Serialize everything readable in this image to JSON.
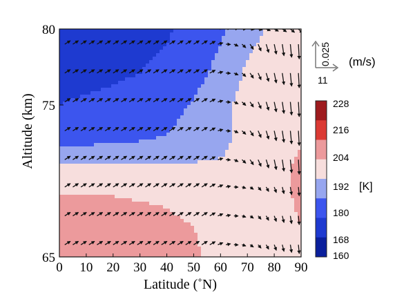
{
  "chart_data": {
    "type": "heatmap",
    "xlabel": "Latitude (˚N)",
    "ylabel": "Altitude (km)",
    "xlim": [
      0,
      90
    ],
    "ylim": [
      65,
      80
    ],
    "x_ticks": [
      "0",
      "10",
      "20",
      "30",
      "40",
      "50",
      "60",
      "70",
      "80",
      "90"
    ],
    "y_ticks": [
      "65",
      "75",
      "80"
    ],
    "grid": false,
    "colorbar": {
      "unit": "[K]",
      "range": [
        160,
        228
      ],
      "tick_labels": [
        "228",
        "216",
        "204",
        "192",
        "180",
        "168",
        "160"
      ],
      "levels": [
        160,
        168,
        180,
        192,
        204,
        216,
        228
      ],
      "colors": [
        "#0a1f9c",
        "#1e3ad0",
        "#3c55ee",
        "#97a6ef",
        "#f7dedd",
        "#ec9a9c",
        "#db3a34",
        "#9e1b1e"
      ]
    },
    "temperature_field": {
      "latitudes": [
        0,
        10,
        20,
        30,
        40,
        50,
        60,
        70,
        80,
        90
      ],
      "altitudes": [
        65,
        67,
        69,
        71,
        73,
        75,
        77,
        79,
        80
      ],
      "values_K": [
        [
          214,
          214,
          213,
          212,
          210,
          206,
          200,
          196,
          200,
          204
        ],
        [
          211,
          211,
          210,
          209,
          207,
          204,
          198,
          194,
          199,
          204
        ],
        [
          205,
          205,
          204,
          203,
          202,
          199,
          194,
          192,
          200,
          206
        ],
        [
          193,
          193,
          193,
          193,
          193,
          193,
          193,
          194,
          200,
          206
        ],
        [
          173,
          174,
          175,
          177,
          180,
          184,
          189,
          196,
          200,
          203
        ],
        [
          168,
          169,
          170,
          172,
          176,
          181,
          189,
          196,
          200,
          201
        ],
        [
          166,
          166,
          167,
          168,
          171,
          176,
          184,
          194,
          198,
          199
        ],
        [
          166,
          166,
          166,
          166,
          168,
          172,
          180,
          190,
          196,
          197
        ],
        [
          166,
          166,
          166,
          166,
          167,
          171,
          178,
          188,
          194,
          196
        ]
      ]
    },
    "wind_vectors": {
      "altitudes": [
        65.8,
        67.7,
        69.6,
        71.4,
        73.3,
        75.2,
        77.1,
        79.0,
        80.0
      ],
      "latitudes": [
        2,
        5,
        8,
        11,
        14,
        17,
        20,
        23,
        26,
        29,
        32,
        35,
        38,
        41,
        44,
        47,
        50,
        53,
        56,
        59,
        62,
        65,
        68,
        71,
        74,
        77,
        80,
        83,
        86,
        89
      ],
      "description": "meridional (m/s) and vertical (m/s) wind arrows; poleward near equator, strong downward near pole"
    },
    "wind_scale": {
      "vertical_value": "0.025",
      "horizontal_value": "11",
      "unit": "(m/s)"
    }
  }
}
